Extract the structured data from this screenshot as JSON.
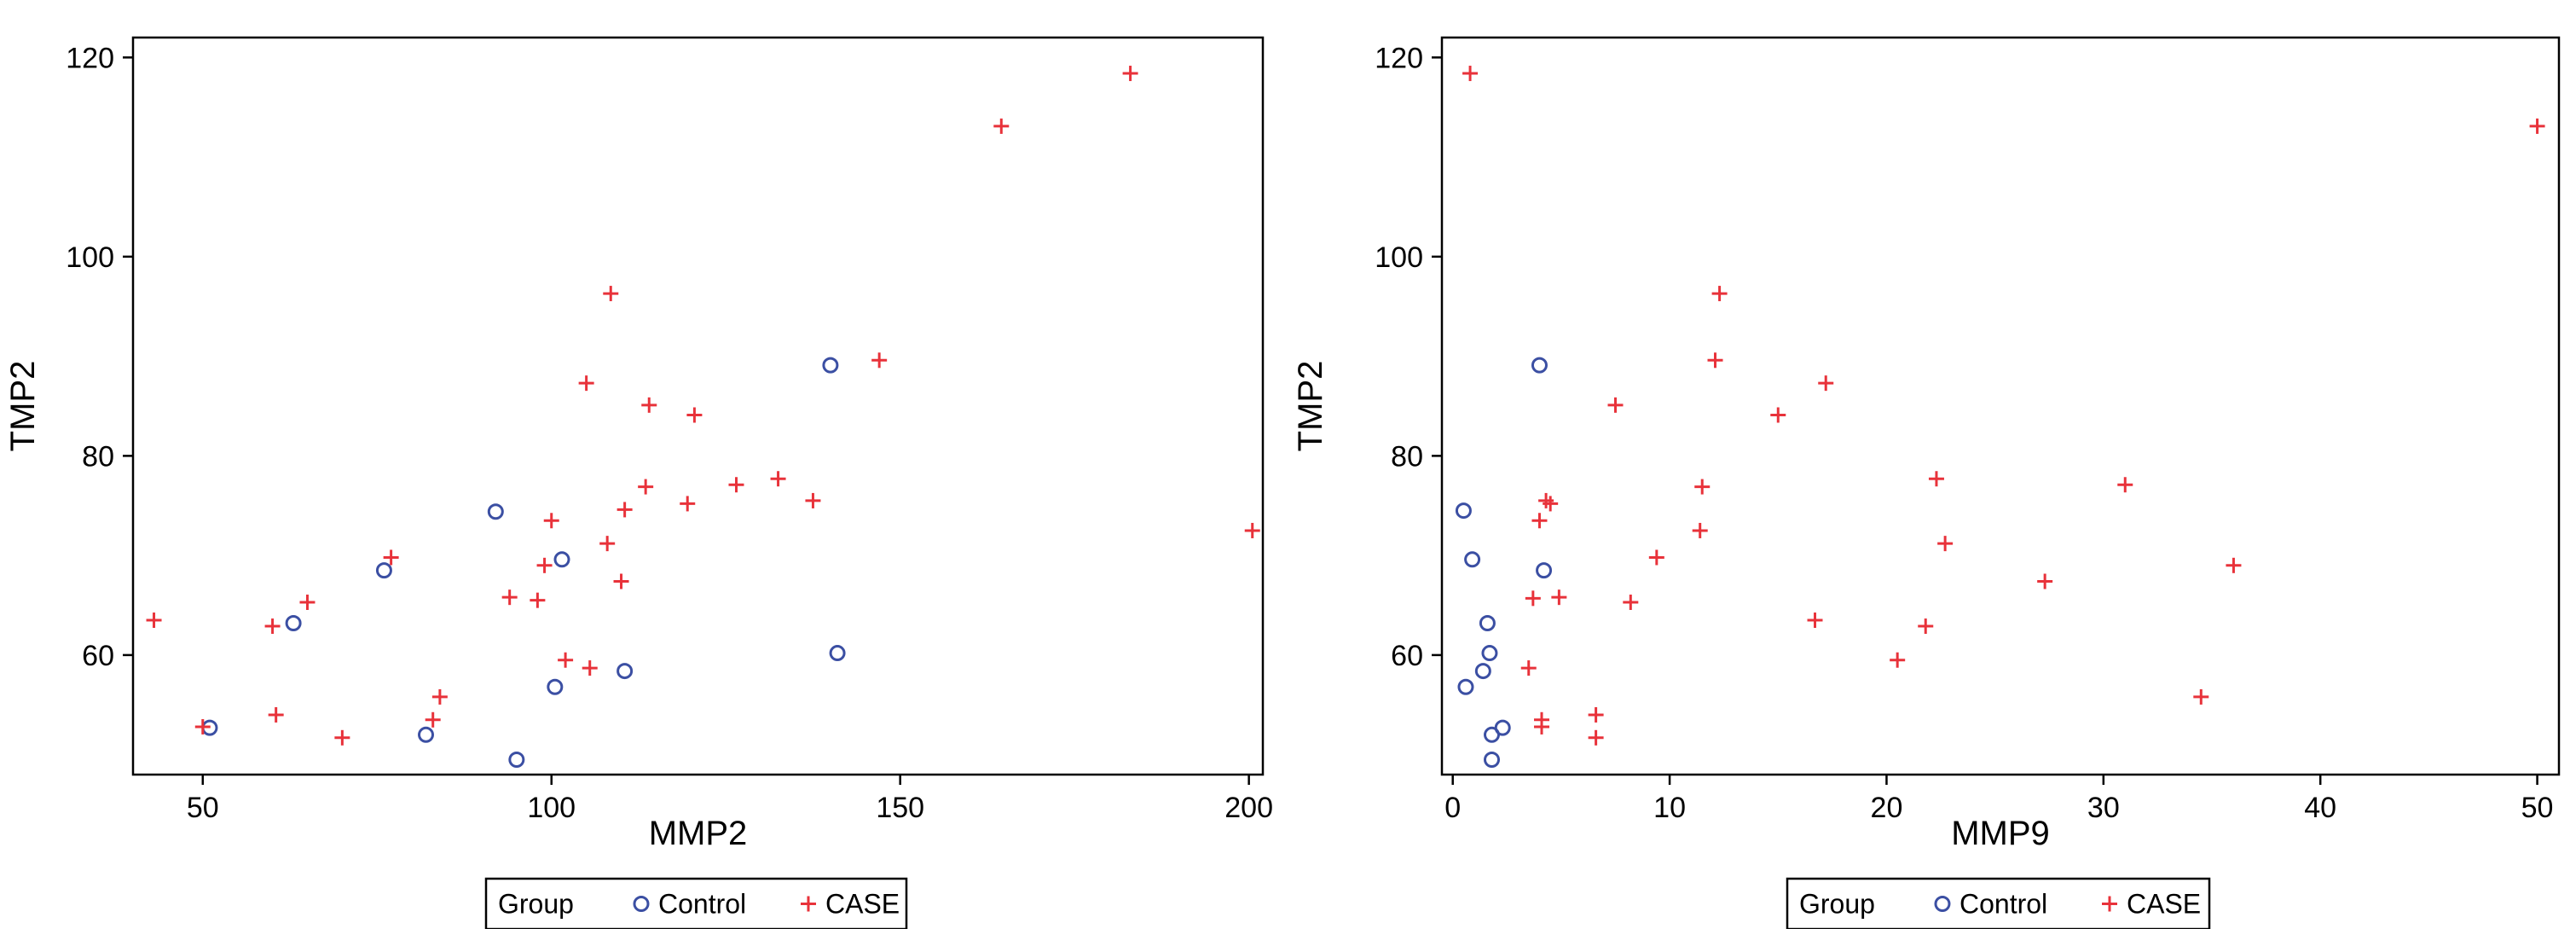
{
  "colors": {
    "control": "#3b4fa3",
    "case": "#e8323a",
    "axis": "#000000"
  },
  "chart_data": [
    {
      "type": "scatter",
      "xlabel": "MMP2",
      "ylabel": "TMP2",
      "xlim": [
        40,
        202
      ],
      "ylim": [
        48,
        122
      ],
      "xticks": [
        50,
        100,
        150,
        200
      ],
      "yticks": [
        60,
        80,
        100,
        120
      ],
      "legend": {
        "title": "Group",
        "placement": "bottom-center"
      },
      "series": [
        {
          "name": "Control",
          "marker": "circle",
          "points": [
            [
              51,
              52.7
            ],
            [
              63,
              63.2
            ],
            [
              76,
              68.5
            ],
            [
              82,
              52
            ],
            [
              92,
              74.4
            ],
            [
              95,
              49.5
            ],
            [
              100.5,
              56.8
            ],
            [
              101.5,
              69.6
            ],
            [
              110.5,
              58.4
            ],
            [
              140,
              89.1
            ],
            [
              141,
              60.2
            ]
          ]
        },
        {
          "name": "CASE",
          "marker": "plus",
          "points": [
            [
              43,
              63.5
            ],
            [
              50,
              52.8
            ],
            [
              60,
              62.9
            ],
            [
              60.5,
              54
            ],
            [
              65,
              65.3
            ],
            [
              70,
              51.7
            ],
            [
              77,
              69.8
            ],
            [
              83,
              53.5
            ],
            [
              84,
              55.8
            ],
            [
              94,
              65.8
            ],
            [
              98,
              65.5
            ],
            [
              99,
              69
            ],
            [
              100,
              73.5
            ],
            [
              102,
              59.5
            ],
            [
              105,
              87.3
            ],
            [
              105.5,
              58.7
            ],
            [
              108,
              71.2
            ],
            [
              108.5,
              96.3
            ],
            [
              110,
              67.4
            ],
            [
              110.5,
              74.6
            ],
            [
              113.5,
              76.9
            ],
            [
              114,
              85.1
            ],
            [
              119.5,
              75.2
            ],
            [
              120.5,
              84.1
            ],
            [
              126.5,
              77.1
            ],
            [
              132.5,
              77.7
            ],
            [
              137.5,
              75.5
            ],
            [
              147,
              89.6
            ],
            [
              164.5,
              113.1
            ],
            [
              183,
              118.4
            ],
            [
              200.5,
              72.5
            ]
          ]
        }
      ]
    },
    {
      "type": "scatter",
      "xlabel": "MMP9",
      "ylabel": "TMP2",
      "xlim": [
        -0.5,
        51
      ],
      "ylim": [
        48,
        122
      ],
      "xticks": [
        0,
        10,
        20,
        30,
        40,
        50
      ],
      "yticks": [
        60,
        80,
        100,
        120
      ],
      "legend": {
        "title": "Group",
        "placement": "bottom-center"
      },
      "series": [
        {
          "name": "Control",
          "marker": "circle",
          "points": [
            [
              0.5,
              74.5
            ],
            [
              0.6,
              56.8
            ],
            [
              0.9,
              69.6
            ],
            [
              1.4,
              58.4
            ],
            [
              1.6,
              63.2
            ],
            [
              1.7,
              60.2
            ],
            [
              1.8,
              52
            ],
            [
              1.8,
              49.5
            ],
            [
              2.3,
              52.7
            ],
            [
              4,
              89.1
            ],
            [
              4.2,
              68.5
            ]
          ]
        },
        {
          "name": "CASE",
          "marker": "plus",
          "points": [
            [
              0.8,
              118.4
            ],
            [
              3.5,
              58.7
            ],
            [
              3.7,
              65.7
            ],
            [
              4,
              73.5
            ],
            [
              4.1,
              53.5
            ],
            [
              4.1,
              52.8
            ],
            [
              4.3,
              75.5
            ],
            [
              4.5,
              75.2
            ],
            [
              4.9,
              65.8
            ],
            [
              6.6,
              54
            ],
            [
              6.6,
              51.7
            ],
            [
              7.5,
              85.1
            ],
            [
              8.2,
              65.3
            ],
            [
              9.4,
              69.8
            ],
            [
              11.4,
              72.5
            ],
            [
              11.5,
              76.9
            ],
            [
              12.1,
              89.6
            ],
            [
              12.3,
              96.3
            ],
            [
              15,
              84.1
            ],
            [
              16.7,
              63.5
            ],
            [
              17.2,
              87.3
            ],
            [
              20.5,
              59.5
            ],
            [
              21.8,
              62.9
            ],
            [
              22.3,
              77.7
            ],
            [
              22.7,
              71.2
            ],
            [
              27.3,
              67.4
            ],
            [
              31,
              77.1
            ],
            [
              34.5,
              55.8
            ],
            [
              36,
              69
            ],
            [
              50,
              113.1
            ]
          ]
        }
      ]
    }
  ]
}
